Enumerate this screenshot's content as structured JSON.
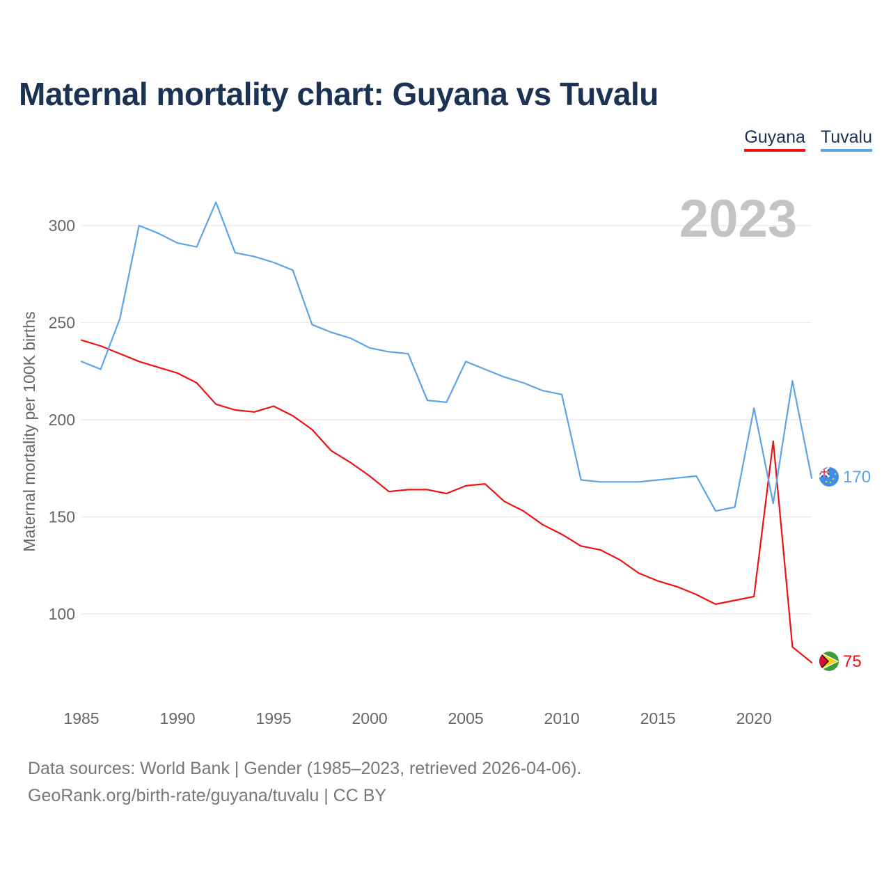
{
  "title": "Maternal mortality chart: Guyana vs Tuvalu",
  "year_label": "2023",
  "footer": {
    "line1": "Data sources: World Bank | Gender (1985–2023, retrieved 2026-04-06).",
    "line2": "GeoRank.org/birth-rate/guyana/tuvalu | CC BY"
  },
  "chart_data": {
    "type": "line",
    "title": "Maternal mortality chart: Guyana vs Tuvalu",
    "xlabel": "",
    "ylabel": "Maternal mortality per 100K births",
    "xlim": [
      1985,
      2023
    ],
    "ylim": [
      60,
      325
    ],
    "x_ticks": [
      1985,
      1990,
      1995,
      2000,
      2005,
      2010,
      2015,
      2020
    ],
    "y_ticks": [
      100,
      150,
      200,
      250,
      300
    ],
    "grid": true,
    "legend_position": "top-right",
    "x": [
      1985,
      1986,
      1987,
      1988,
      1989,
      1990,
      1991,
      1992,
      1993,
      1994,
      1995,
      1996,
      1997,
      1998,
      1999,
      2000,
      2001,
      2002,
      2003,
      2004,
      2005,
      2006,
      2007,
      2008,
      2009,
      2010,
      2011,
      2012,
      2013,
      2014,
      2015,
      2016,
      2017,
      2018,
      2019,
      2020,
      2021,
      2022,
      2023
    ],
    "series": [
      {
        "name": "Guyana",
        "color": "#ee1111",
        "end_label": "75",
        "values": [
          241,
          238,
          234,
          230,
          227,
          224,
          219,
          208,
          205,
          204,
          207,
          202,
          195,
          184,
          178,
          171,
          163,
          164,
          164,
          162,
          166,
          167,
          158,
          153,
          146,
          141,
          135,
          133,
          128,
          121,
          117,
          114,
          110,
          105,
          107,
          109,
          189,
          83,
          75
        ]
      },
      {
        "name": "Tuvalu",
        "color": "#5ba4e6",
        "end_label": "170",
        "values": [
          230,
          226,
          252,
          300,
          296,
          291,
          289,
          312,
          286,
          284,
          281,
          277,
          249,
          245,
          242,
          237,
          235,
          234,
          210,
          209,
          230,
          226,
          222,
          219,
          215,
          213,
          169,
          168,
          168,
          168,
          169,
          170,
          171,
          153,
          155,
          206,
          157,
          220,
          170
        ]
      }
    ]
  }
}
